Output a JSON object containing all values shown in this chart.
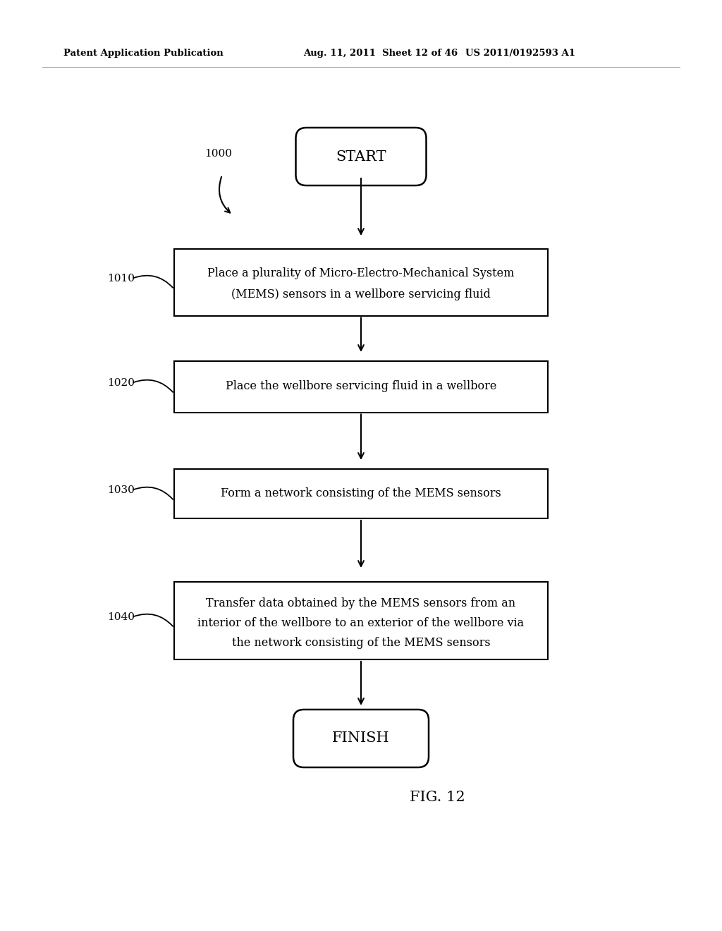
{
  "background_color": "#ffffff",
  "header_left": "Patent Application Publication",
  "header_center": "Aug. 11, 2011  Sheet 12 of 46",
  "header_right": "US 2011/0192593 A1",
  "header_fontsize": 9.5,
  "figure_label": "FIG. 12",
  "label_1000": "1000",
  "label_1010": "1010",
  "label_1020": "1020",
  "label_1030": "1030",
  "label_1040": "1040",
  "start_text": "START",
  "finish_text": "FINISH",
  "box1_line1": "Place a plurality of Micro-Electro-Mechanical System",
  "box1_line2": "(MEMS) sensors in a wellbore servicing fluid",
  "box2_text": "Place the wellbore servicing fluid in a wellbore",
  "box3_text": "Form a network consisting of the MEMS sensors",
  "box4_line1": "Transfer data obtained by the MEMS sensors from an",
  "box4_line2": "interior of the wellbore to an exterior of the wellbore via",
  "box4_line3": "the network consisting of the MEMS sensors",
  "text_color": "#000000",
  "box_edge_color": "#000000",
  "box_face_color": "#ffffff",
  "arrow_color": "#000000",
  "label_color": "#555555"
}
